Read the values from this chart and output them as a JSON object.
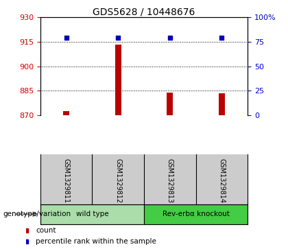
{
  "title": "GDS5628 / 10448676",
  "samples": [
    "GSM1329811",
    "GSM1329812",
    "GSM1329813",
    "GSM1329814"
  ],
  "count_values": [
    872.5,
    913.5,
    884.0,
    883.5
  ],
  "percentile_values": [
    79,
    79.5,
    79,
    79
  ],
  "ylim_left": [
    870,
    930
  ],
  "ylim_right": [
    0,
    100
  ],
  "yticks_left": [
    870,
    885,
    900,
    915,
    930
  ],
  "yticks_right": [
    0,
    25,
    50,
    75,
    100
  ],
  "bar_color": "#bb0000",
  "dot_color": "#0000bb",
  "bar_width": 0.12,
  "groups": [
    {
      "label": "wild type",
      "indices": [
        0,
        1
      ],
      "color": "#aaddaa"
    },
    {
      "label": "Rev-erbα knockout",
      "indices": [
        2,
        3
      ],
      "color": "#44cc44"
    }
  ],
  "group_label": "genotype/variation",
  "legend_count_label": "count",
  "legend_pct_label": "percentile rank within the sample",
  "background_color": "#ffffff",
  "plot_bg": "#ffffff",
  "sample_area_bg": "#cccccc",
  "x_positions": [
    1,
    2,
    3,
    4
  ],
  "x_min": 0.5,
  "x_max": 4.5
}
